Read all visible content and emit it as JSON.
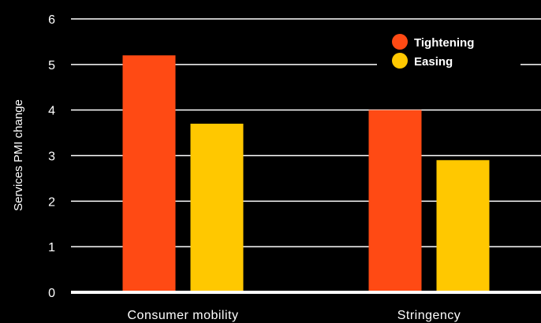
{
  "chart_data": {
    "type": "bar",
    "title": "",
    "xlabel": "",
    "ylabel": "Services  PMI change",
    "ylim": [
      0,
      6
    ],
    "yticks": [
      0,
      1,
      2,
      3,
      4,
      5,
      6
    ],
    "grid": true,
    "legend_position": "top-right",
    "categories": [
      "Consumer mobility",
      "Stringency"
    ],
    "series": [
      {
        "name": "Tightening",
        "color": "#ff4a14",
        "values": [
          5.2,
          4.0
        ]
      },
      {
        "name": "Easing",
        "color": "#ffc800",
        "values": [
          3.7,
          2.9
        ]
      }
    ]
  }
}
